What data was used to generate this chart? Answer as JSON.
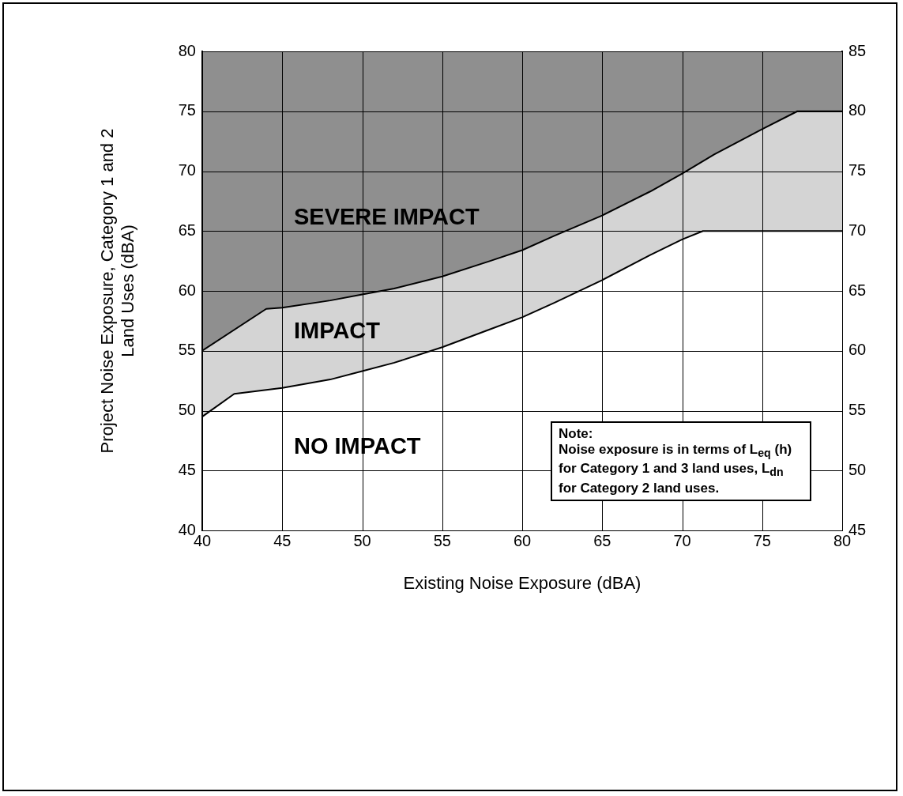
{
  "chart_data": {
    "type": "area",
    "xlabel": "Existing Noise Exposure (dBA)",
    "ylabel": "Project Noise Exposure, Category 1 and 2 Land Uses (dBA)",
    "series": [
      {
        "color": "#ffffff",
        "x": [
          40,
          42,
          45,
          48,
          50,
          52,
          55,
          58,
          60,
          62,
          65,
          68,
          70,
          71.3,
          80
        ],
        "values": [
          49.5,
          51.4,
          51.9,
          52.6,
          53.3,
          54.0,
          55.3,
          56.8,
          57.8,
          59.0,
          60.9,
          63.0,
          64.3,
          65,
          65
        ]
      },
      {
        "color": "#d4d4d4",
        "x": [
          40,
          44,
          45,
          48,
          50,
          52,
          55,
          58,
          60,
          62,
          65,
          68,
          70,
          72,
          75,
          77.2,
          80
        ],
        "values": [
          55,
          58.5,
          58.6,
          59.2,
          59.7,
          60.2,
          61.2,
          62.5,
          63.4,
          64.6,
          66.3,
          68.3,
          69.8,
          71.4,
          73.5,
          75,
          75
        ]
      }
    ],
    "xlim": [
      40,
      80
    ],
    "xticks": [
      40,
      45,
      50,
      55,
      60,
      65,
      70,
      75,
      80
    ],
    "ylim": [
      40,
      80
    ],
    "yticks": [
      40,
      45,
      50,
      55,
      60,
      65,
      70,
      75,
      80
    ],
    "y2lim": [
      45,
      85
    ],
    "y2ticks": [
      45,
      50,
      55,
      60,
      65,
      70,
      75,
      80,
      85
    ],
    "grid": true,
    "legend": false,
    "marker": "none",
    "line_style": "solid",
    "annotations": [
      "SEVERE IMPACT",
      "IMPACT",
      "NO IMPACT",
      "Note:",
      "Noise exposure is in terms of L$_{eq}$ (h) for Category 1 and 3 land uses, L$_{dn}$ for Category 2 land uses."
    ]
  }
}
